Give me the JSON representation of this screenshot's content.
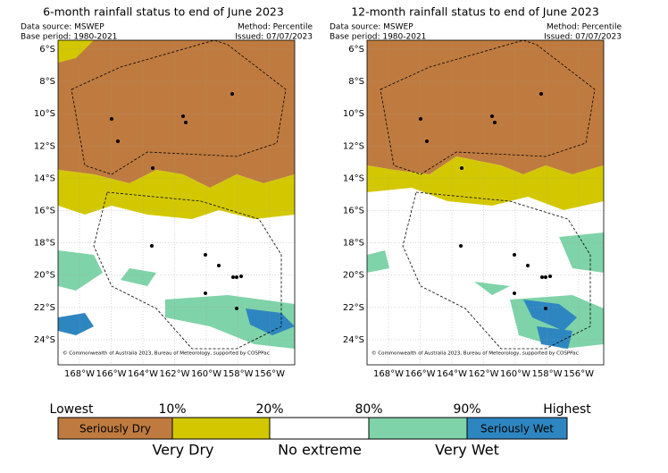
{
  "panels": [
    {
      "title": "6-month rainfall status to end of June 2023",
      "source": "Data source: MSWEP",
      "base": "Base period: 1980-2021",
      "method": "Method: Percentile",
      "issued": "Issued: 07/07/2023",
      "lat_labels": [
        "6°S",
        "8°S",
        "10°S",
        "12°S",
        "14°S",
        "16°S",
        "18°S",
        "20°S",
        "22°S",
        "24°S"
      ],
      "lon_labels": [
        "168°W",
        "166°W",
        "164°W",
        "162°W",
        "160°W",
        "158°W",
        "156°W"
      ],
      "copyright": "© Commonwealth of Australia 2023, Bureau of Meteorology, supported by COSPPac"
    },
    {
      "title": "12-month rainfall status to end of June 2023",
      "source": "Data source: MSWEP",
      "base": "Base period: 1980-2021",
      "method": "Method: Percentile",
      "issued": "Issued: 07/07/2023",
      "lat_labels": [
        "6°S",
        "8°S",
        "10°S",
        "12°S",
        "14°S",
        "16°S",
        "18°S",
        "20°S",
        "22°S",
        "24°S"
      ],
      "lon_labels": [
        "168°W",
        "166°W",
        "164°W",
        "162°W",
        "160°W",
        "158°W",
        "156°W"
      ],
      "copyright": "© Commonwealth of Australia 2023, Bureau of Meteorology, supported by COSPPac"
    }
  ],
  "legend": {
    "thresholds": [
      "Lowest",
      "10%",
      "20%",
      "80%",
      "90%",
      "Highest"
    ],
    "classes": [
      "Seriously Dry",
      "Very Dry",
      "No extreme",
      "Very Wet",
      "Seriously Wet"
    ]
  }
}
